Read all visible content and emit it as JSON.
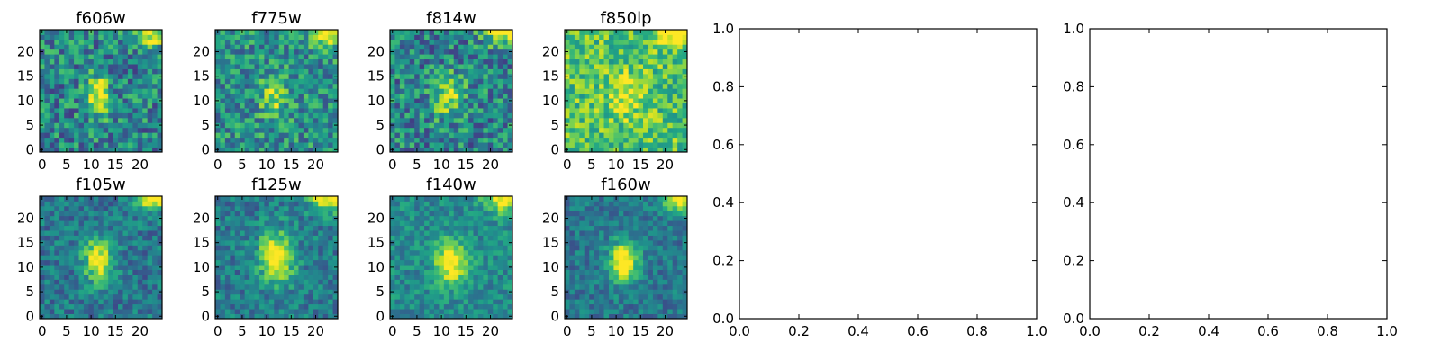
{
  "chart_data": [
    {
      "type": "heatmap",
      "title": "f606w",
      "xticks": [
        "0",
        "5",
        "10",
        "15",
        "20"
      ],
      "yticks": [
        "0",
        "5",
        "10",
        "15",
        "20"
      ],
      "xlim": [
        -0.5,
        24.5
      ],
      "ylim": [
        -0.5,
        24.5
      ],
      "colormap": "viridis",
      "seed": 11,
      "blob_amp": 0.55,
      "blob_cx": 11.5,
      "blob_cy": 11,
      "blob_sx": 1.6,
      "blob_sy": 3.0,
      "noise": 0.55,
      "base": 0.45
    },
    {
      "type": "heatmap",
      "title": "f775w",
      "xticks": [
        "0",
        "5",
        "10",
        "15",
        "20"
      ],
      "yticks": [
        "0",
        "5",
        "10",
        "15",
        "20"
      ],
      "xlim": [
        -0.5,
        24.5
      ],
      "ylim": [
        -0.5,
        24.5
      ],
      "colormap": "viridis",
      "seed": 23,
      "blob_amp": 0.4,
      "blob_cx": 11.5,
      "blob_cy": 11,
      "blob_sx": 1.8,
      "blob_sy": 2.8,
      "noise": 0.5,
      "base": 0.5
    },
    {
      "type": "heatmap",
      "title": "f814w",
      "xticks": [
        "0",
        "5",
        "10",
        "15",
        "20"
      ],
      "yticks": [
        "0",
        "5",
        "10",
        "15",
        "20"
      ],
      "xlim": [
        -0.5,
        24.5
      ],
      "ylim": [
        -0.5,
        24.5
      ],
      "colormap": "viridis",
      "seed": 37,
      "blob_amp": 0.45,
      "blob_cx": 11.5,
      "blob_cy": 11,
      "blob_sx": 2.2,
      "blob_sy": 3.0,
      "noise": 0.55,
      "base": 0.45
    },
    {
      "type": "heatmap",
      "title": "f850lp",
      "xticks": [
        "0",
        "5",
        "10",
        "15",
        "20"
      ],
      "yticks": [
        "0",
        "5",
        "10",
        "15",
        "20"
      ],
      "xlim": [
        -0.5,
        24.5
      ],
      "ylim": [
        -0.5,
        24.5
      ],
      "colormap": "viridis",
      "seed": 53,
      "blob_amp": 0.25,
      "blob_cx": 12,
      "blob_cy": 11,
      "blob_sx": 2.5,
      "blob_sy": 3.0,
      "noise": 0.45,
      "base": 0.72
    },
    {
      "type": "heatmap",
      "title": "f105w",
      "xticks": [
        "0",
        "5",
        "10",
        "15",
        "20"
      ],
      "yticks": [
        "0",
        "5",
        "10",
        "15",
        "20"
      ],
      "xlim": [
        -0.5,
        24.5
      ],
      "ylim": [
        -0.5,
        24.5
      ],
      "colormap": "viridis",
      "seed": 71,
      "blob_amp": 0.6,
      "blob_cx": 11.5,
      "blob_cy": 11.5,
      "blob_sx": 2.2,
      "blob_sy": 3.2,
      "noise": 0.35,
      "base": 0.4
    },
    {
      "type": "heatmap",
      "title": "f125w",
      "xticks": [
        "0",
        "5",
        "10",
        "15",
        "20"
      ],
      "yticks": [
        "0",
        "5",
        "10",
        "15",
        "20"
      ],
      "xlim": [
        -0.5,
        24.5
      ],
      "ylim": [
        -0.5,
        24.5
      ],
      "colormap": "viridis",
      "seed": 89,
      "blob_amp": 0.65,
      "blob_cx": 12,
      "blob_cy": 12,
      "blob_sx": 2.5,
      "blob_sy": 3.5,
      "noise": 0.35,
      "base": 0.42
    },
    {
      "type": "heatmap",
      "title": "f140w",
      "xticks": [
        "0",
        "5",
        "10",
        "15",
        "20"
      ],
      "yticks": [
        "0",
        "5",
        "10",
        "15",
        "20"
      ],
      "xlim": [
        -0.5,
        24.5
      ],
      "ylim": [
        -0.5,
        24.5
      ],
      "colormap": "viridis",
      "seed": 97,
      "blob_amp": 0.6,
      "blob_cx": 12,
      "blob_cy": 11,
      "blob_sx": 2.3,
      "blob_sy": 3.0,
      "noise": 0.3,
      "base": 0.48
    },
    {
      "type": "heatmap",
      "title": "f160w",
      "xticks": [
        "0",
        "5",
        "10",
        "15",
        "20"
      ],
      "yticks": [
        "0",
        "5",
        "10",
        "15",
        "20"
      ],
      "xlim": [
        -0.5,
        24.5
      ],
      "ylim": [
        -0.5,
        24.5
      ],
      "colormap": "viridis",
      "seed": 113,
      "blob_amp": 0.75,
      "blob_cx": 11.5,
      "blob_cy": 11,
      "blob_sx": 2.0,
      "blob_sy": 2.8,
      "noise": 0.3,
      "base": 0.4
    },
    {
      "type": "line",
      "title": "",
      "xlim": [
        0,
        1
      ],
      "ylim": [
        0,
        1
      ],
      "xticks": [
        "0.0",
        "0.2",
        "0.4",
        "0.6",
        "0.8",
        "1.0"
      ],
      "yticks": [
        "0.0",
        "0.2",
        "0.4",
        "0.6",
        "0.8",
        "1.0"
      ],
      "series": []
    },
    {
      "type": "line",
      "title": "",
      "xlim": [
        0,
        1
      ],
      "ylim": [
        0,
        1
      ],
      "xticks": [
        "0.0",
        "0.2",
        "0.4",
        "0.6",
        "0.8",
        "1.0"
      ],
      "yticks": [
        "0.0",
        "0.2",
        "0.4",
        "0.6",
        "0.8",
        "1.0"
      ],
      "series": []
    }
  ]
}
